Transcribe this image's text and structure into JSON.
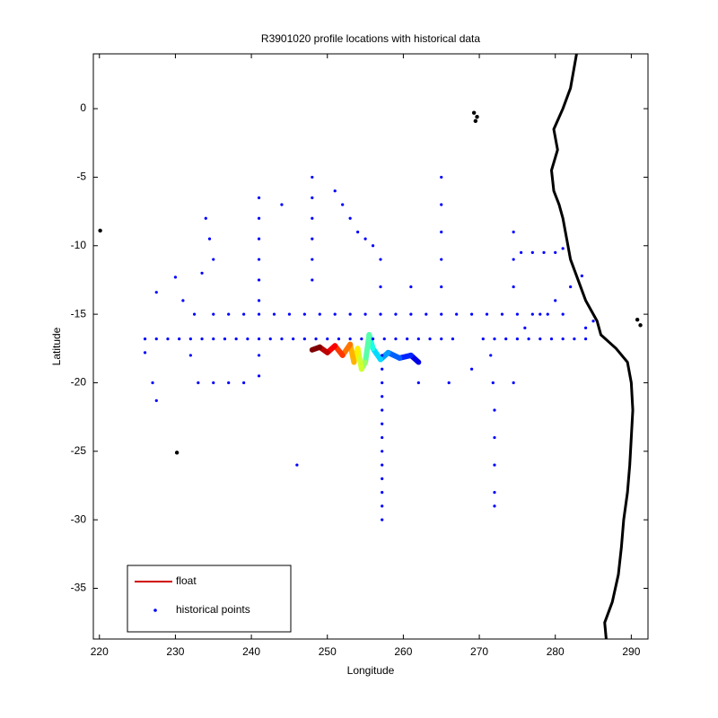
{
  "chart_data": {
    "type": "scatter",
    "title": "R3901020 profile locations with historical data",
    "xlabel": "Longitude",
    "ylabel": "Latitude",
    "xlim": [
      219.2,
      292.2
    ],
    "ylim": [
      -38.7,
      4
    ],
    "xticks": [
      220,
      230,
      240,
      250,
      260,
      270,
      280,
      290
    ],
    "yticks": [
      0,
      -5,
      -10,
      -15,
      -20,
      -25,
      -30,
      -35
    ],
    "legend": "lower left",
    "series": [
      {
        "name": "float",
        "color": "#d00000",
        "kind": "line",
        "colormap": "jet",
        "x": [
          262,
          261,
          259.5,
          258,
          257,
          256,
          255.5,
          255,
          254.5,
          254,
          253.5,
          253,
          252,
          251,
          250,
          249,
          248
        ],
        "y": [
          -18.5,
          -18,
          -18.2,
          -17.8,
          -18.3,
          -17.5,
          -16.5,
          -18.5,
          -19,
          -17.5,
          -18.5,
          -17.2,
          -18,
          -17.3,
          -17.8,
          -17.4,
          -17.6
        ]
      },
      {
        "name": "historical points",
        "color": "#0000ff",
        "kind": "points",
        "x": [
          226,
          227.5,
          229,
          230.5,
          232,
          233.5,
          235,
          236.5,
          238,
          239.5,
          241,
          242.5,
          244,
          245.5,
          247,
          248.5,
          250,
          251.5,
          253,
          254.5,
          256,
          257.5,
          259,
          260.5,
          262,
          263.5,
          265,
          266.5,
          270.5,
          272,
          273.5,
          275,
          276.5,
          278,
          279.5,
          281,
          282.5,
          284,
          235,
          237,
          239,
          241,
          243,
          245,
          247,
          249,
          251,
          253,
          255,
          257,
          259,
          261,
          263,
          265,
          267,
          269,
          271,
          273,
          275,
          277,
          279,
          281,
          257.2,
          257.2,
          257.2,
          257.2,
          257.2,
          257.2,
          257.2,
          257.2,
          257.2,
          257.2,
          257.2,
          257.2,
          257.2,
          251,
          252,
          253,
          254,
          255,
          256,
          257,
          257,
          241,
          241,
          241,
          241,
          241,
          241,
          241,
          241,
          248,
          248,
          248,
          248,
          248,
          248,
          265,
          265,
          265,
          265,
          265,
          271.5,
          271.8,
          272,
          272,
          272,
          272,
          272,
          274.5,
          274.5,
          274.5,
          275.5,
          277,
          278.5,
          280,
          281,
          276,
          278,
          280,
          282,
          283.5,
          226,
          227,
          227.5,
          227.5,
          230,
          231,
          232.5,
          234,
          234.5,
          235,
          233.5,
          233,
          235,
          237,
          239,
          246,
          232,
          244,
          262,
          266,
          269,
          261,
          274.5,
          285,
          284
        ],
        "y": [
          -16.8,
          -16.8,
          -16.8,
          -16.8,
          -16.8,
          -16.8,
          -16.8,
          -16.8,
          -16.8,
          -16.8,
          -16.8,
          -16.8,
          -16.8,
          -16.8,
          -16.8,
          -16.8,
          -16.8,
          -16.8,
          -16.8,
          -16.8,
          -16.8,
          -16.8,
          -16.8,
          -16.8,
          -16.8,
          -16.8,
          -16.8,
          -16.8,
          -16.8,
          -16.8,
          -16.8,
          -16.8,
          -16.8,
          -16.8,
          -16.8,
          -16.8,
          -16.8,
          -16.8,
          -15,
          -15,
          -15,
          -15,
          -15,
          -15,
          -15,
          -15,
          -15,
          -15,
          -15,
          -15,
          -15,
          -15,
          -15,
          -15,
          -15,
          -15,
          -15,
          -15,
          -15,
          -15,
          -15,
          -15,
          -18,
          -19,
          -20,
          -21,
          -22,
          -23,
          -24,
          -25,
          -26,
          -27,
          -28,
          -29,
          -30,
          -6,
          -7,
          -8,
          -9,
          -9.5,
          -10,
          -11,
          -13,
          -6.5,
          -8,
          -9.5,
          -11,
          -12.5,
          -14,
          -18,
          -19.5,
          -5,
          -6.5,
          -8,
          -9.5,
          -11,
          -12.5,
          -5,
          -7,
          -9,
          -11,
          -13,
          -18,
          -20,
          -22,
          -24,
          -26,
          -28,
          -29,
          -9,
          -11,
          -13,
          -10.5,
          -10.5,
          -10.5,
          -10.5,
          -10.2,
          -16,
          -15,
          -14,
          -13,
          -12.2,
          -17.8,
          -20,
          -21.3,
          -13.4,
          -12.3,
          -14,
          -15,
          -8,
          -9.5,
          -11,
          -12,
          -20,
          -20,
          -20,
          -20,
          -26,
          -18,
          -7,
          -20,
          -20,
          -19,
          -13,
          -20,
          -15.5,
          -16
        ]
      },
      {
        "color": "#000000",
        "kind": "line",
        "x": [
          282.8,
          282,
          281,
          279.8,
          280.3,
          279.5,
          279.8,
          280.5,
          281,
          281.5,
          282,
          283,
          284,
          285.5,
          286,
          288,
          289.5,
          290,
          290.2,
          290,
          289.8,
          289.5,
          289,
          288.7,
          288.3,
          287.5,
          286.5,
          286.7
        ],
        "y": [
          4,
          1.5,
          0,
          -1.5,
          -3,
          -4.5,
          -6,
          -7,
          -8,
          -9.5,
          -11,
          -12.5,
          -14,
          -15.5,
          -16.5,
          -17.5,
          -18.5,
          -20,
          -22,
          -24,
          -26,
          -28,
          -30,
          -32,
          -34,
          -36,
          -37.5,
          -38.7
        ]
      },
      {
        "color": "#000000",
        "kind": "points",
        "x": [
          269.3,
          269.7,
          269.5,
          290.8,
          291.2,
          220.1,
          230.2
        ],
        "y": [
          -0.3,
          -0.6,
          -0.9,
          -15.4,
          -15.8,
          -8.9,
          -25.1
        ]
      }
    ]
  }
}
